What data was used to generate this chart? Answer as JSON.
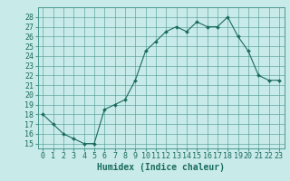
{
  "x": [
    0,
    1,
    2,
    3,
    4,
    5,
    6,
    7,
    8,
    9,
    10,
    11,
    12,
    13,
    14,
    15,
    16,
    17,
    18,
    19,
    20,
    21,
    22,
    23
  ],
  "y": [
    18,
    17,
    16,
    15.5,
    15,
    15,
    18.5,
    19,
    19.5,
    21.5,
    24.5,
    25.5,
    26.5,
    27,
    26.5,
    27.5,
    27,
    27,
    28,
    26,
    24.5,
    22,
    21.5,
    21.5
  ],
  "line_color": "#1a6b5e",
  "marker_color": "#1a6b5e",
  "bg_color": "#c8eae8",
  "grid_color": "#4a9990",
  "xlabel": "Humidex (Indice chaleur)",
  "xlim": [
    -0.5,
    23.5
  ],
  "ylim": [
    14.5,
    29
  ],
  "yticks": [
    15,
    16,
    17,
    18,
    19,
    20,
    21,
    22,
    23,
    24,
    25,
    26,
    27,
    28
  ],
  "xticks": [
    0,
    1,
    2,
    3,
    4,
    5,
    6,
    7,
    8,
    9,
    10,
    11,
    12,
    13,
    14,
    15,
    16,
    17,
    18,
    19,
    20,
    21,
    22,
    23
  ],
  "xlabel_fontsize": 7,
  "tick_fontsize": 6,
  "font_family": "monospace"
}
